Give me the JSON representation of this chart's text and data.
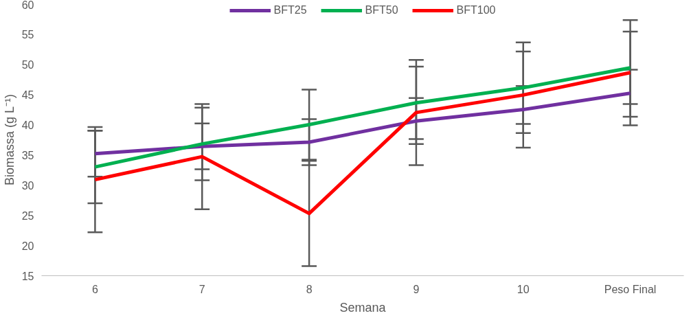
{
  "chart_data": {
    "type": "line",
    "xlabel": "Semana",
    "ylabel": "Biomassa (g L⁻¹)",
    "categories": [
      "6",
      "7",
      "8",
      "9",
      "10",
      "Peso Final"
    ],
    "series": [
      {
        "name": "BFT25",
        "color": "#7030a0",
        "values": [
          35.2,
          36.4,
          37.1,
          40.6,
          42.5,
          45.2
        ],
        "errors": [
          3.8,
          3.8,
          3.8,
          3.8,
          3.9,
          3.9
        ]
      },
      {
        "name": "BFT50",
        "color": "#00b050",
        "values": [
          33.0,
          36.8,
          40.0,
          43.6,
          46.1,
          49.4
        ],
        "errors": [
          6.0,
          6.0,
          5.8,
          6.0,
          6.0,
          6.0
        ]
      },
      {
        "name": "BFT100",
        "color": "#ff0000",
        "values": [
          30.9,
          34.7,
          25.3,
          42.0,
          44.9,
          48.6
        ],
        "errors": [
          8.7,
          8.7,
          8.7,
          8.7,
          8.7,
          8.7
        ]
      }
    ],
    "ylim": [
      15,
      60
    ],
    "yticks": [
      15,
      20,
      25,
      30,
      35,
      40,
      45,
      50,
      55,
      60
    ],
    "grid": false,
    "legend": "top",
    "marker": "none",
    "line_style": "solid"
  }
}
